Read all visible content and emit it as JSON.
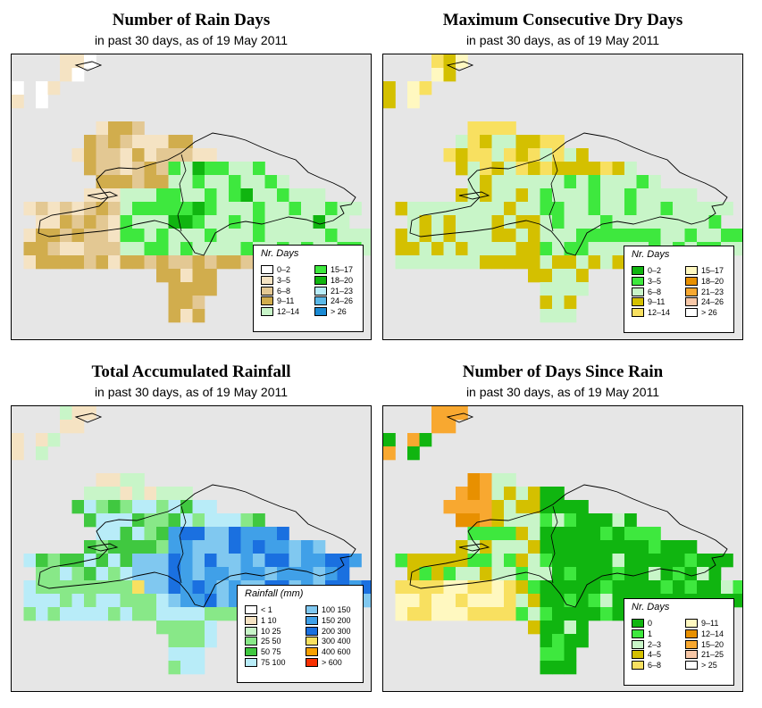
{
  "panels": [
    {
      "title": "Number of Rain Days",
      "subtitle": "in past 30 days, as of  19 May 2011",
      "legend_title": "Nr. Days",
      "legend": [
        {
          "label": "0–2",
          "color": "#ffffff"
        },
        {
          "label": "3–5",
          "color": "#f5e3c3"
        },
        {
          "label": "6–8",
          "color": "#e3c893"
        },
        {
          "label": "9–11",
          "color": "#d1ad4d"
        },
        {
          "label": "12–14",
          "color": "#c8f5c8"
        },
        {
          "label": "15–17",
          "color": "#3ee83e"
        },
        {
          "label": "18–20",
          "color": "#10b510"
        },
        {
          "label": "21–23",
          "color": "#b8ecf8"
        },
        {
          "label": "24–26",
          "color": "#5ab8e8"
        },
        {
          "label": "> 26",
          "color": "#1a8ad4"
        }
      ]
    },
    {
      "title": "Maximum Consecutive Dry Days",
      "subtitle": "in past 30 days, as of  19 May 2011",
      "legend_title": "Nr. Days",
      "legend": [
        {
          "label": "0–2",
          "color": "#10b510"
        },
        {
          "label": "3–5",
          "color": "#3ee83e"
        },
        {
          "label": "6–8",
          "color": "#c8f5c8"
        },
        {
          "label": "9–11",
          "color": "#d4c000"
        },
        {
          "label": "12–14",
          "color": "#f8e060"
        },
        {
          "label": "15–17",
          "color": "#fff8c0"
        },
        {
          "label": "18–20",
          "color": "#e89000"
        },
        {
          "label": "21–23",
          "color": "#f8a830"
        },
        {
          "label": "24–26",
          "color": "#f8c8a8"
        },
        {
          "label": "> 26",
          "color": "#ffffff"
        }
      ]
    },
    {
      "title": "Total Accumulated Rainfall",
      "subtitle": "in past 30 days, as of  19 May 2011",
      "legend_title": "Rainfall (mm)",
      "legend": [
        {
          "label": "< 1",
          "color": "#ffffff"
        },
        {
          "label": "1    10",
          "color": "#f5e3c3"
        },
        {
          "label": "10    25",
          "color": "#c8f5c8"
        },
        {
          "label": "25    50",
          "color": "#88e888"
        },
        {
          "label": "50    75",
          "color": "#40c840"
        },
        {
          "label": "75   100",
          "color": "#b8ecf8"
        },
        {
          "label": "100   150",
          "color": "#80c8f0"
        },
        {
          "label": "150   200",
          "color": "#40a0e8"
        },
        {
          "label": "200   300",
          "color": "#1a70e0"
        },
        {
          "label": "300   400",
          "color": "#f8e060"
        },
        {
          "label": "400   600",
          "color": "#f8a000"
        },
        {
          "label": "> 600",
          "color": "#f83000"
        }
      ]
    },
    {
      "title": "Number of Days Since Rain",
      "subtitle": "in past 30 days, as of  19 May 2011",
      "legend_title": "Nr. Days",
      "legend": [
        {
          "label": "0",
          "color": "#10b510"
        },
        {
          "label": "1",
          "color": "#3ee83e"
        },
        {
          "label": "2–3",
          "color": "#c8f5c8"
        },
        {
          "label": "4–5",
          "color": "#d4c000"
        },
        {
          "label": "6–8",
          "color": "#f8e060"
        },
        {
          "label": "9–11",
          "color": "#fff8c0"
        },
        {
          "label": "12–14",
          "color": "#e89000"
        },
        {
          "label": "15–20",
          "color": "#f8a830"
        },
        {
          "label": "21–25",
          "color": "#f8c8a8"
        },
        {
          "label": "> 25",
          "color": "#ffffff"
        }
      ]
    }
  ]
}
